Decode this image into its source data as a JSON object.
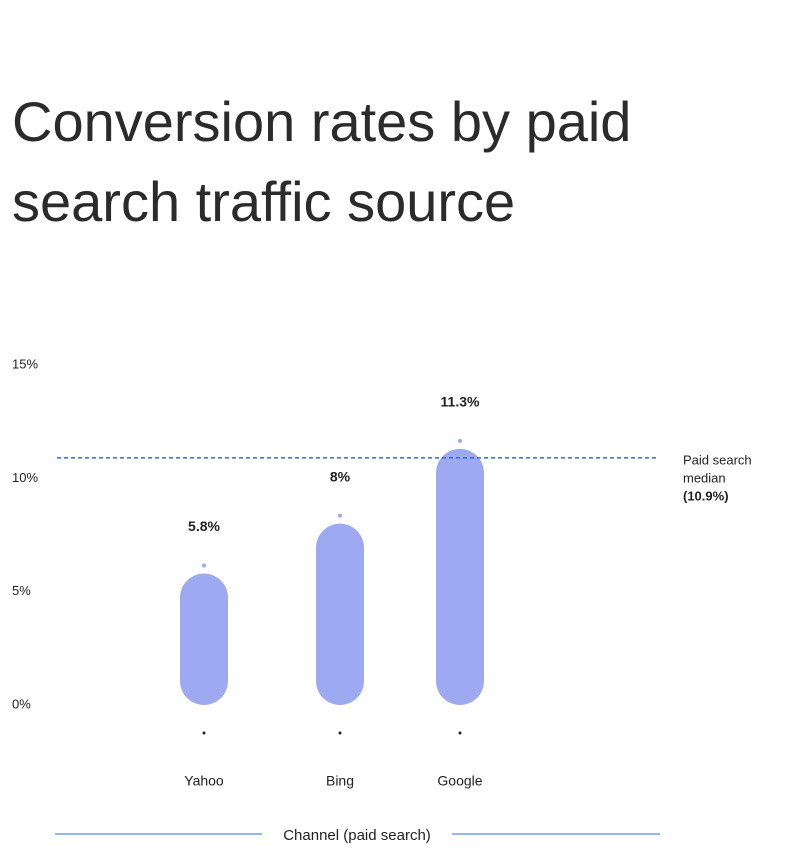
{
  "chart_data": {
    "type": "bar",
    "title": [
      "Conversion rates by paid",
      "search traffic source"
    ],
    "x_label": "Channel (paid search)",
    "categories": [
      "Yahoo",
      "Bing",
      "Google"
    ],
    "values": [
      5.8,
      8,
      11.3
    ],
    "value_labels": [
      "5.8%",
      "8%",
      "11.3%"
    ],
    "color": "#9daaf2",
    "ylim": [
      0,
      15
    ],
    "yticks": [
      {
        "value": 0,
        "label": "0%"
      },
      {
        "value": 5,
        "label": "5%"
      },
      {
        "value": 10,
        "label": "10%"
      },
      {
        "value": 15,
        "label": "15%"
      }
    ],
    "median": {
      "text": [
        "Paid search",
        "median"
      ],
      "value": 10.9,
      "label": "(10.9%)",
      "color": "#2a6fdb"
    }
  }
}
